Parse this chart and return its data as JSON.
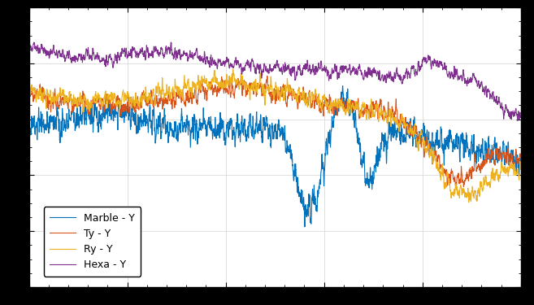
{
  "colors": {
    "marble_y": "#0072BD",
    "ty_y": "#D95319",
    "ry_y": "#EDB120",
    "hexa_y": "#7E2F8E"
  },
  "legend_labels": [
    "Marble - Y",
    "Ty - Y",
    "Ry - Y",
    "Hexa - Y"
  ],
  "xlim": [
    0,
    500
  ],
  "ylim": [
    -80,
    20
  ],
  "background": "#ffffff",
  "grid_color": "#d3d3d3",
  "linewidth": 0.8
}
